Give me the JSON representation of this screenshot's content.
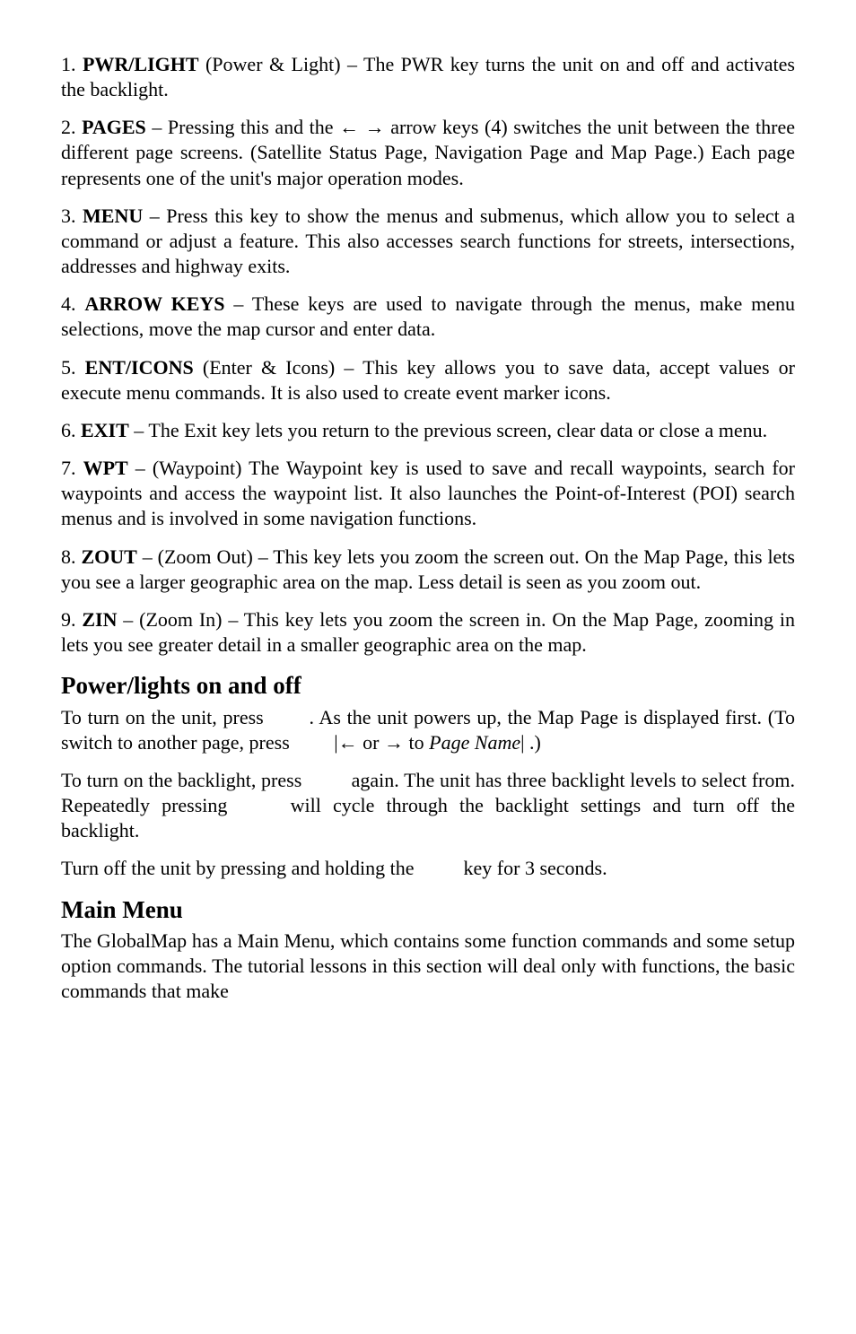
{
  "items": [
    {
      "num": "1.",
      "name": "PWR/LIGHT",
      "rest": " (Power & Light) – The PWR key turns the unit on and off and activates the backlight."
    },
    {
      "num": "2.",
      "name": "PAGES",
      "rest_a": " – Pressing this and the ",
      "arrows": "← →",
      "rest_b": " arrow keys (4) switches the unit between the three different page screens. (Satellite Status Page, Navigation Page and Map Page.) Each page represents one of the unit's major operation modes."
    },
    {
      "num": "3.",
      "name": "MENU",
      "rest": " – Press this key to show the menus and submenus, which allow you to select a command or adjust a feature. This also accesses search functions for streets, intersections, addresses and highway exits."
    },
    {
      "num": "4.",
      "name": "ARROW KEYS",
      "rest": " – These keys are used to navigate through the menus, make menu selections, move the map cursor and enter data."
    },
    {
      "num": "5.",
      "name": "ENT/ICONS",
      "rest": " (Enter & Icons) – This key allows you to save data, accept values or execute menu commands. It is also used to create event marker icons."
    },
    {
      "num": "6.",
      "name": "EXIT",
      "rest": " – The Exit key lets you return to the previous screen, clear data or close a menu."
    },
    {
      "num": "7.",
      "name": "WPT",
      "rest": " – (Waypoint) The Waypoint key is used to save and recall waypoints, search for waypoints and access the waypoint list. It also launches the Point-of-Interest (POI) search menus and is involved in some navigation functions."
    },
    {
      "num": "8.",
      "name": "ZOUT",
      "rest": " – (Zoom Out) – This key lets you zoom the screen out. On the Map Page, this lets you see a larger geographic area on the map. Less detail is seen as you zoom out."
    },
    {
      "num": "9.",
      "name": "ZIN",
      "rest": " – (Zoom In) – This key lets you zoom the screen in. On the Map Page, zooming in lets you see greater detail in a smaller geographic area on the map."
    }
  ],
  "h_power": "Power/lights on and off",
  "power_p1_a": "To turn on the unit, press ",
  "power_p1_b": ". As the unit powers up, the Map Page is displayed first. (To switch to another page, press ",
  "power_p1_c": "|",
  "power_p1_arrows": "← or → to",
  "power_p1_pagename": "Page Name",
  "power_p1_end": "|       .)",
  "power_p2_a": "To turn on the backlight, press ",
  "power_p2_b": " again. The unit has three backlight levels to select from. Repeatedly pressing ",
  "power_p2_c": " will cycle through the backlight settings and turn off the backlight.",
  "power_p3_a": "Turn off the unit by pressing and holding the ",
  "power_p3_b": " key for 3 seconds.",
  "h_main": "Main Menu",
  "main_p1": "The GlobalMap has a Main Menu, which contains some function commands and some setup option commands. The tutorial lessons in this section will deal only with functions, the basic commands that make"
}
